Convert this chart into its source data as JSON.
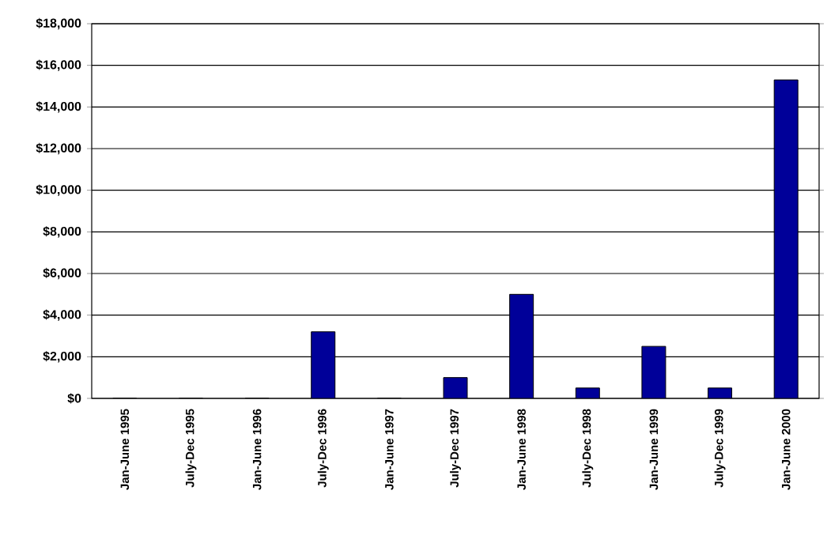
{
  "chart_data": {
    "type": "bar",
    "categories": [
      "Jan-June 1995",
      "July-Dec 1995",
      "Jan-June 1996",
      "July-Dec 1996",
      "Jan-June 1997",
      "July-Dec 1997",
      "Jan-June 1998",
      "July-Dec 1998",
      "Jan-June 1999",
      "July-Dec 1999",
      "Jan-June 2000"
    ],
    "values": [
      0,
      0,
      0,
      3200,
      0,
      1000,
      5000,
      500,
      2500,
      500,
      15300
    ],
    "color": "#000099",
    "ylim": [
      0,
      18000
    ],
    "yticks": [
      {
        "value": 0,
        "label": "$0"
      },
      {
        "value": 2000,
        "label": "$2,000"
      },
      {
        "value": 4000,
        "label": "$4,000"
      },
      {
        "value": 6000,
        "label": "$6,000"
      },
      {
        "value": 8000,
        "label": "$8,000"
      },
      {
        "value": 10000,
        "label": "$10,000"
      },
      {
        "value": 12000,
        "label": "$12,000"
      },
      {
        "value": 14000,
        "label": "$14,000"
      },
      {
        "value": 16000,
        "label": "$16,000"
      },
      {
        "value": 18000,
        "label": "$18,000"
      }
    ],
    "grid": "y"
  }
}
